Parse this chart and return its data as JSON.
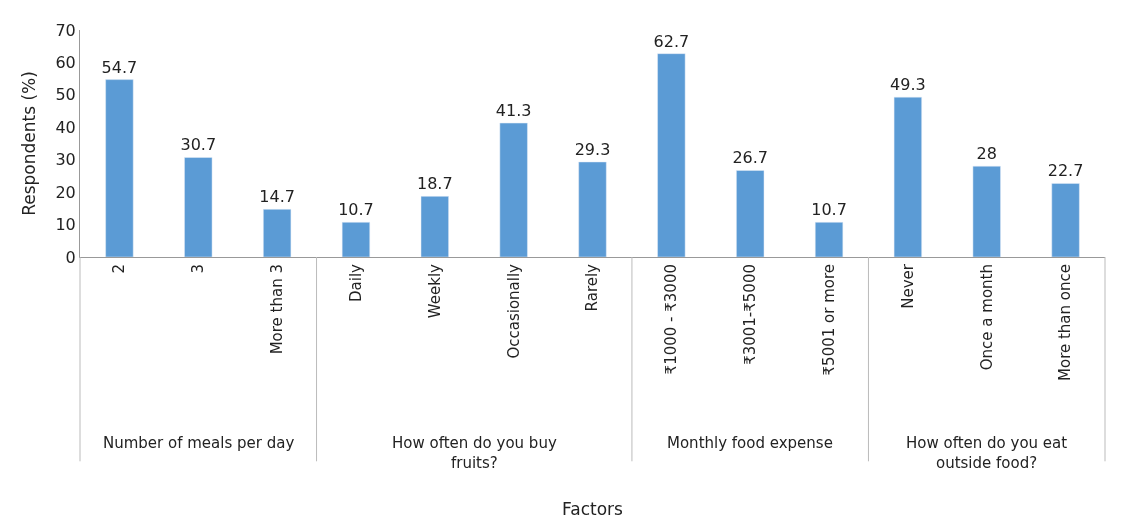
{
  "chart_data": [
    {
      "type": "bar",
      "xlabel": "Number of meals per day",
      "ylabel": "Respondents (%)",
      "categories": [
        "2",
        "3",
        "More than 3"
      ],
      "values": [
        54.7,
        30.7,
        14.7
      ],
      "color": "#5b9bd5",
      "ylim": [
        0,
        70
      ],
      "yticks": [
        0,
        10,
        20,
        30,
        40,
        50,
        60,
        70
      ],
      "data_labels": true
    },
    {
      "type": "bar",
      "xlabel": "How often do you buy fruits?",
      "categories": [
        "Daily",
        "Weekly",
        "Occasionally",
        "Rarely"
      ],
      "values": [
        10.7,
        18.7,
        41.3,
        29.3
      ],
      "color": "#5b9bd5",
      "ylim": [
        0,
        70
      ],
      "tick_labels": "x",
      "data_labels": true
    },
    {
      "type": "bar",
      "xlabel": "Monthly food expense",
      "categories": [
        "₹1000 - ₹3000",
        "₹3001-₹5000",
        "₹5001 or more"
      ],
      "values": [
        62.7,
        26.7,
        10.7
      ],
      "color": "#5b9bd5",
      "ylim": [
        0,
        70
      ],
      "tick_labels": "x",
      "data_labels": true,
      "annotations": [
        "Factors"
      ]
    },
    {
      "type": "bar",
      "xlabel": "How often do you eat outside food?",
      "categories": [
        "Never",
        "Once a month",
        "More than once"
      ],
      "values": [
        49.3,
        28,
        22.7
      ],
      "color": "#5b9bd5",
      "ylim": [
        0,
        70
      ],
      "tick_labels": "x",
      "data_labels": true
    }
  ]
}
